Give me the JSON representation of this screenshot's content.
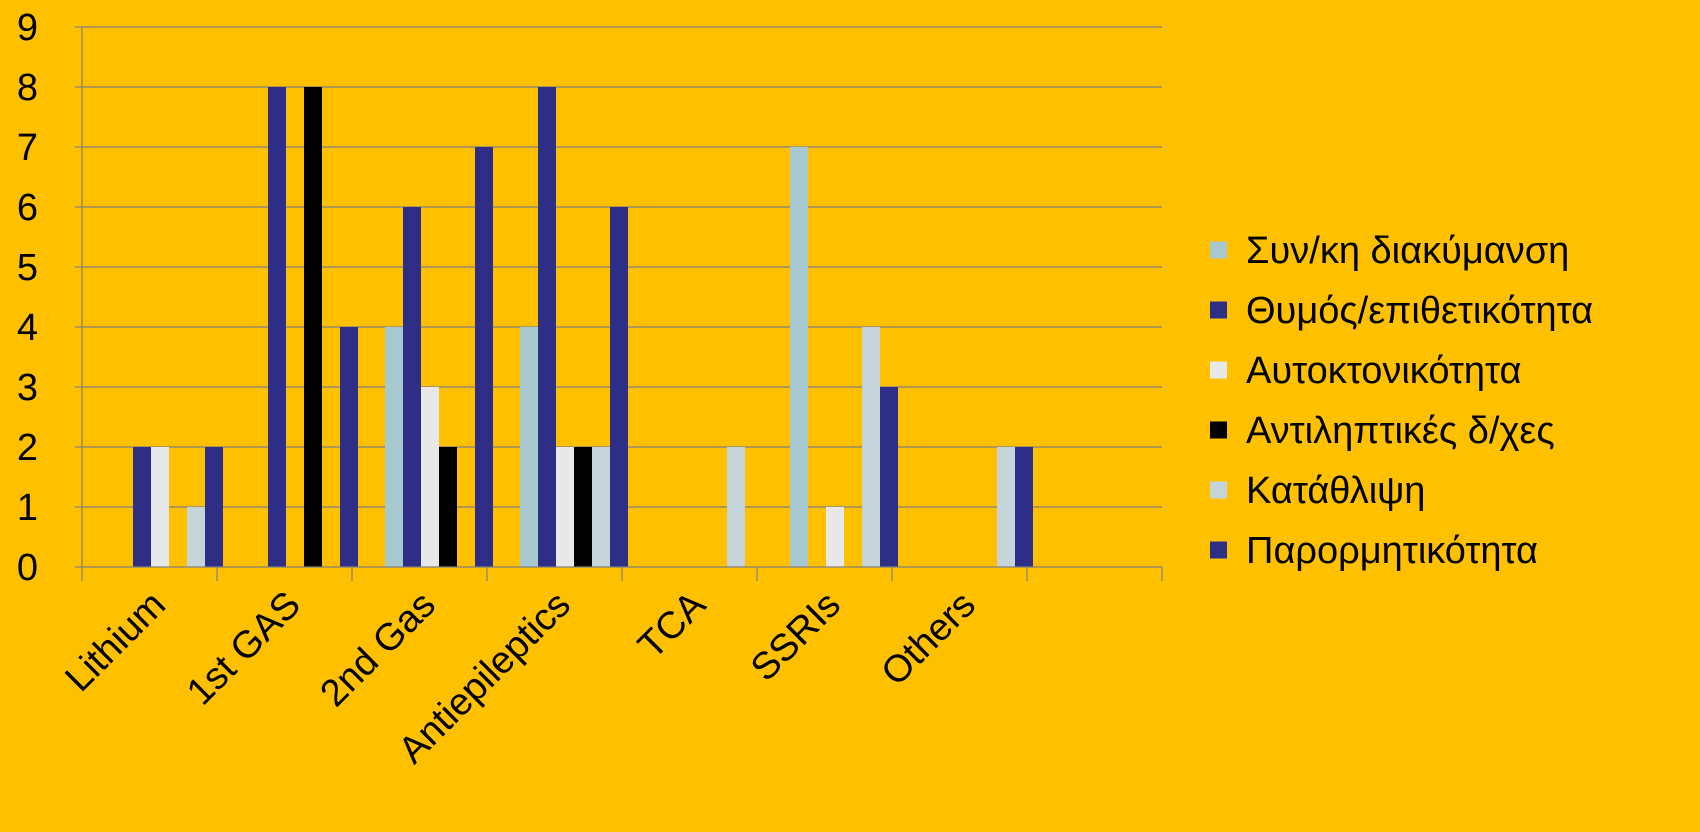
{
  "chart_data": {
    "type": "bar",
    "title": "",
    "xlabel": "",
    "ylabel": "",
    "ylim": [
      0,
      9
    ],
    "yticks": [
      "0",
      "1",
      "2",
      "3",
      "4",
      "5",
      "6",
      "7",
      "8",
      "9"
    ],
    "grid": true,
    "legend_position": "right",
    "categories": [
      "Lithium",
      "1st GAS",
      "2nd Gas",
      "Antiepileptics",
      "TCA",
      "SSRIs",
      "Others",
      ""
    ],
    "series": [
      {
        "name": "Συν/κη διακύμανση",
        "color": "#A8C8D0",
        "values": [
          0,
          0,
          4,
          4,
          0,
          7,
          0,
          0
        ]
      },
      {
        "name": "Θυμός/επιθετικότητα",
        "color": "#2E2E86",
        "values": [
          2,
          8,
          6,
          8,
          0,
          0,
          0,
          0
        ]
      },
      {
        "name": "Αυτοκτονικότητα",
        "color": "#E8E8E8",
        "values": [
          2,
          0,
          3,
          2,
          0,
          1,
          0,
          0
        ]
      },
      {
        "name": "Αντιληπτικές δ/χες",
        "color": "#000000",
        "values": [
          0,
          8,
          2,
          2,
          0,
          0,
          0,
          0
        ]
      },
      {
        "name": "Κατάθλιψη",
        "color": "#C4D4D8",
        "values": [
          1,
          0,
          0,
          2,
          2,
          4,
          2,
          0
        ]
      },
      {
        "name": "Παρορμητικότητα",
        "color": "#2E2E86",
        "values": [
          2,
          4,
          7,
          6,
          0,
          3,
          2,
          0
        ]
      }
    ]
  }
}
